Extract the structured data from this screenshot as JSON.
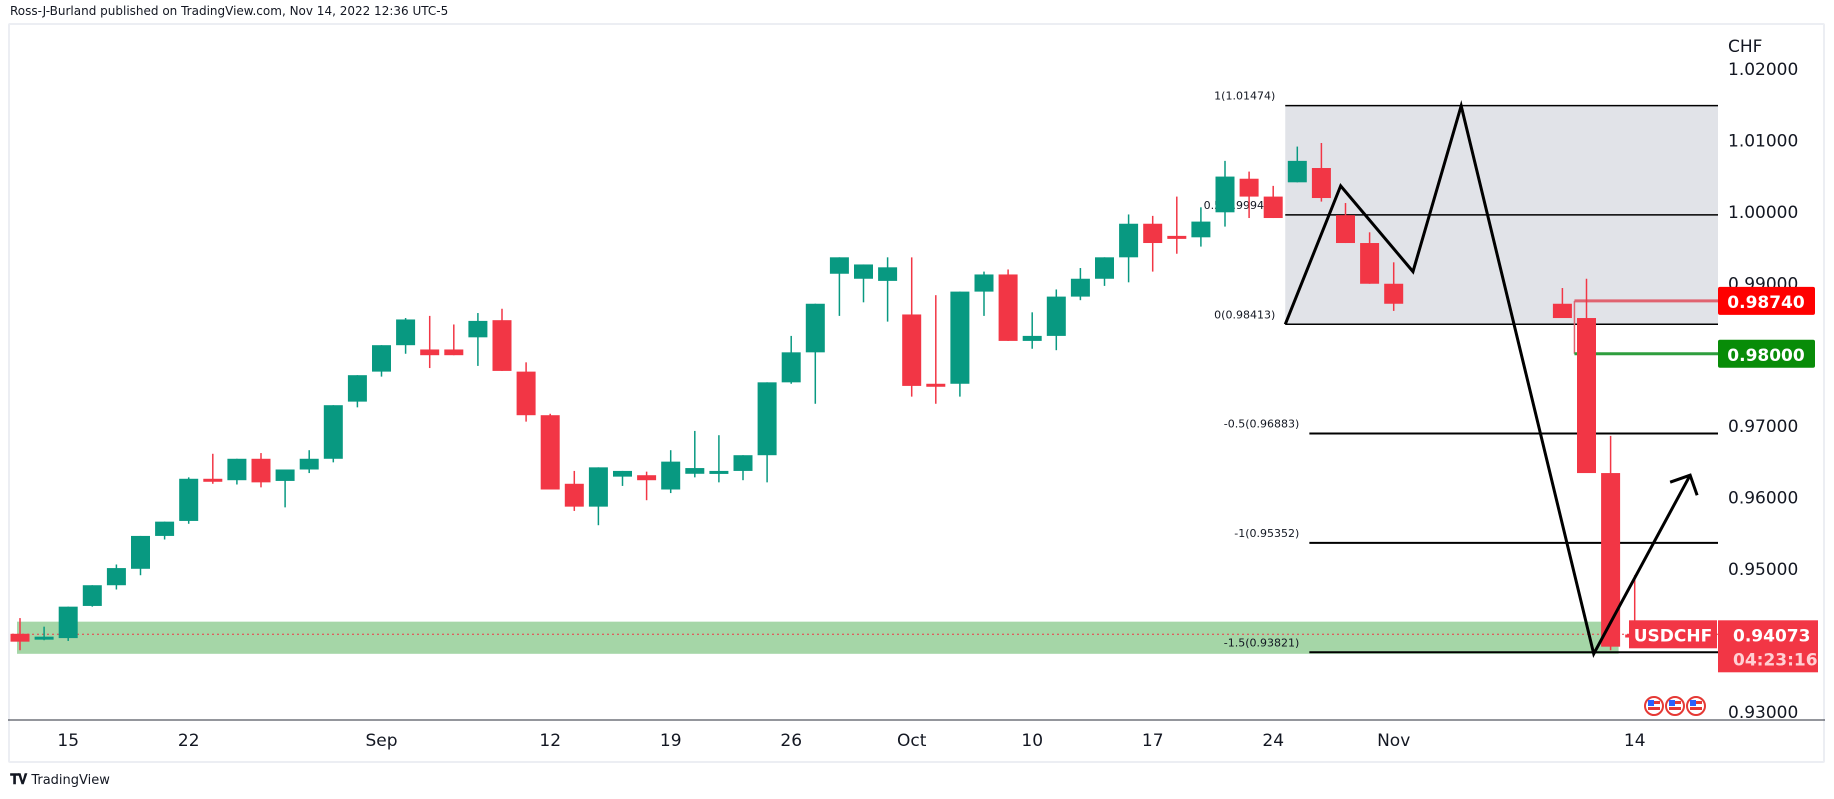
{
  "header": {
    "text": "Ross-J-Burland published on TradingView.com, Nov 14, 2022 12:36 UTC-5"
  },
  "footer": {
    "logo": "tradingview-logo-icon",
    "brand": "TradingView"
  },
  "chart_data": {
    "type": "candlestick",
    "symbol": "USDCHF",
    "currency_label": "CHF",
    "colors": {
      "up": "#089981",
      "down": "#f23645",
      "fib_zone": "#e1e3e8",
      "support_zone": "#a5d6a7",
      "green_line": "#2e9e3e",
      "red_line": "#e06370"
    },
    "ylim": [
      0.925,
      1.0205
    ],
    "yticks": [
      "1.02000",
      "1.01000",
      "1.00000",
      "0.99000",
      "0.97000",
      "0.96000",
      "0.95000",
      "0.93000"
    ],
    "ytick_values": [
      1.02,
      1.01,
      1.0,
      0.99,
      0.97,
      0.96,
      0.95,
      0.93
    ],
    "xticks": [
      {
        "label": "15",
        "index": 2
      },
      {
        "label": "22",
        "index": 7
      },
      {
        "label": "Sep",
        "index": 15
      },
      {
        "label": "12",
        "index": 22
      },
      {
        "label": "19",
        "index": 27
      },
      {
        "label": "26",
        "index": 32
      },
      {
        "label": "Oct",
        "index": 37
      },
      {
        "label": "10",
        "index": 42
      },
      {
        "label": "17",
        "index": 47
      },
      {
        "label": "24",
        "index": 52
      },
      {
        "label": "Nov",
        "index": 57
      },
      {
        "label": "14",
        "index": 67
      }
    ],
    "candles": [
      [
        0.9408,
        0.943,
        0.9385,
        0.9397
      ],
      [
        0.9402,
        0.9418,
        0.9399,
        0.9404
      ],
      [
        0.9402,
        0.9445,
        0.9398,
        0.9446
      ],
      [
        0.9447,
        0.9471,
        0.9446,
        0.9476
      ],
      [
        0.9476,
        0.9505,
        0.947,
        0.95
      ],
      [
        0.9499,
        0.9538,
        0.949,
        0.9545
      ],
      [
        0.9545,
        0.9553,
        0.954,
        0.9565
      ],
      [
        0.9566,
        0.9627,
        0.9562,
        0.9625
      ],
      [
        0.9625,
        0.966,
        0.9618,
        0.9621
      ],
      [
        0.9623,
        0.965,
        0.9617,
        0.9653
      ],
      [
        0.9653,
        0.9661,
        0.9613,
        0.962
      ],
      [
        0.9622,
        0.9631,
        0.9585,
        0.9638
      ],
      [
        0.9638,
        0.9665,
        0.9633,
        0.9653
      ],
      [
        0.9653,
        0.9695,
        0.9648,
        0.9728
      ],
      [
        0.9733,
        0.9755,
        0.9725,
        0.977
      ],
      [
        0.9775,
        0.981,
        0.9768,
        0.9812
      ],
      [
        0.9812,
        0.985,
        0.98,
        0.9848
      ],
      [
        0.9806,
        0.9853,
        0.978,
        0.9798
      ],
      [
        0.9806,
        0.9841,
        0.98,
        0.9798
      ],
      [
        0.9823,
        0.9857,
        0.9783,
        0.9846
      ],
      [
        0.9847,
        0.9863,
        0.9776,
        0.9776
      ],
      [
        0.9775,
        0.9788,
        0.9705,
        0.9714
      ],
      [
        0.9714,
        0.9716,
        0.961,
        0.961
      ],
      [
        0.9618,
        0.9636,
        0.958,
        0.9586
      ],
      [
        0.9586,
        0.9641,
        0.956,
        0.9641
      ],
      [
        0.9628,
        0.9635,
        0.9615,
        0.9636
      ],
      [
        0.963,
        0.9635,
        0.9595,
        0.9623
      ],
      [
        0.961,
        0.9665,
        0.9605,
        0.9649
      ],
      [
        0.9632,
        0.9692,
        0.9627,
        0.964
      ],
      [
        0.9636,
        0.9686,
        0.962,
        0.9636
      ],
      [
        0.9636,
        0.9655,
        0.9623,
        0.9658
      ],
      [
        0.9658,
        0.9695,
        0.962,
        0.976
      ],
      [
        0.976,
        0.9825,
        0.9758,
        0.9802
      ],
      [
        0.9802,
        0.9833,
        0.973,
        0.987
      ],
      [
        0.9912,
        0.9875,
        0.9853,
        0.9935
      ],
      [
        0.9905,
        0.9915,
        0.9872,
        0.9925
      ],
      [
        0.9902,
        0.9935,
        0.9845,
        0.9921
      ],
      [
        0.9855,
        0.9935,
        0.974,
        0.9755
      ],
      [
        0.9758,
        0.9882,
        0.973,
        0.9755
      ],
      [
        0.9758,
        0.9876,
        0.974,
        0.9887
      ],
      [
        0.9887,
        0.9915,
        0.9853,
        0.9911
      ],
      [
        0.9911,
        0.9918,
        0.9818,
        0.9818
      ],
      [
        0.9818,
        0.9858,
        0.9807,
        0.9825
      ],
      [
        0.9825,
        0.989,
        0.9805,
        0.988
      ],
      [
        0.988,
        0.992,
        0.9875,
        0.9905
      ],
      [
        0.9905,
        0.993,
        0.9895,
        0.9935
      ],
      [
        0.9935,
        0.9995,
        0.99,
        0.9982
      ],
      [
        0.9982,
        0.9993,
        0.9915,
        0.9955
      ],
      [
        0.9965,
        1.002,
        0.994,
        0.9962
      ],
      [
        0.9963,
        1.0005,
        0.995,
        0.9985
      ],
      [
        0.9998,
        1.007,
        0.9978,
        1.0048
      ],
      [
        1.0045,
        1.0055,
        0.999,
        1.002
      ],
      [
        1.002,
        1.0035,
        1.0012,
        0.999
      ],
      [
        1.004,
        1.009,
        1.005,
        1.007
      ],
      [
        1.006,
        1.0095,
        1.0013,
        1.0018
      ],
      [
        0.9994,
        1.0011,
        0.9955,
        0.9955
      ],
      [
        0.9955,
        0.997,
        0.9918,
        0.9898
      ],
      [
        0.9898,
        0.9928,
        0.986,
        0.987
      ]
    ],
    "fib_levels": [
      {
        "label": "1(1.01474)",
        "value": 1.01474
      },
      {
        "label": "0.5(0.99944)",
        "value": 0.99944
      },
      {
        "label": "0(0.98413)",
        "value": 0.98413
      },
      {
        "label": "-0.5(0.96883)",
        "value": 0.96883
      },
      {
        "label": "-1(0.95352)",
        "value": 0.95352
      },
      {
        "label": "-1.5(0.93821)",
        "value": 0.93821
      }
    ],
    "horizontal_lines": [
      {
        "value": 0.9874,
        "label": "0.98740",
        "color": "#ff0000"
      },
      {
        "value": 0.98,
        "label": "0.98000",
        "color": "#088c08"
      }
    ],
    "support_zone": {
      "from": 0.938,
      "to": 0.9425
    },
    "last_price": {
      "symbol": "USDCHF",
      "value": "0.94073",
      "countdown": "04:23:16",
      "color": "#f23645"
    },
    "pattern_path": [
      {
        "index": 52.5,
        "price": 0.98413
      },
      {
        "index": 54.8,
        "price": 1.0035
      },
      {
        "index": 57.8,
        "price": 0.9915
      },
      {
        "index": 59.8,
        "price": 1.0147
      },
      {
        "index": 65.3,
        "price": 0.938
      },
      {
        "index": 69.3,
        "price": 0.963
      }
    ],
    "event_icons": [
      "us-flag-icon",
      "us-flag-icon",
      "us-flag-icon"
    ]
  }
}
